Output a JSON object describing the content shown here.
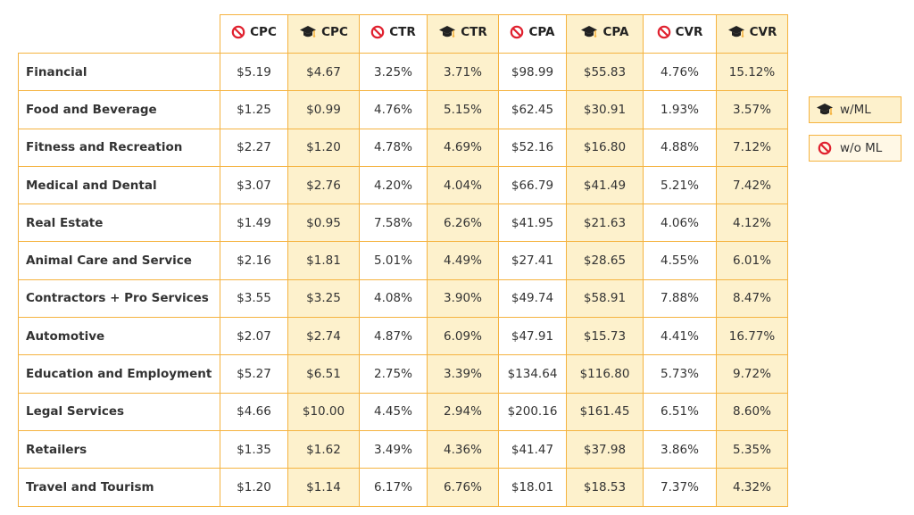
{
  "chart_data": {
    "type": "table",
    "columns": [
      {
        "metric": "CPC",
        "group": "w/o ML"
      },
      {
        "metric": "CPC",
        "group": "w/ML"
      },
      {
        "metric": "CTR",
        "group": "w/o ML"
      },
      {
        "metric": "CTR",
        "group": "w/ML"
      },
      {
        "metric": "CPA",
        "group": "w/o ML"
      },
      {
        "metric": "CPA",
        "group": "w/ML"
      },
      {
        "metric": "CVR",
        "group": "w/o ML"
      },
      {
        "metric": "CVR",
        "group": "w/ML"
      }
    ],
    "rows": [
      {
        "label": "Financial",
        "values": [
          "$5.19",
          "$4.67",
          "3.25%",
          "3.71%",
          "$98.99",
          "$55.83",
          "4.76%",
          "15.12%"
        ]
      },
      {
        "label": "Food and Beverage",
        "values": [
          "$1.25",
          "$0.99",
          "4.76%",
          "5.15%",
          "$62.45",
          "$30.91",
          "1.93%",
          "3.57%"
        ]
      },
      {
        "label": "Fitness and Recreation",
        "values": [
          "$2.27",
          "$1.20",
          "4.78%",
          "4.69%",
          "$52.16",
          "$16.80",
          "4.88%",
          "7.12%"
        ]
      },
      {
        "label": "Medical and Dental",
        "values": [
          "$3.07",
          "$2.76",
          "4.20%",
          "4.04%",
          "$66.79",
          "$41.49",
          "5.21%",
          "7.42%"
        ]
      },
      {
        "label": "Real Estate",
        "values": [
          "$1.49",
          "$0.95",
          "7.58%",
          "6.26%",
          "$41.95",
          "$21.63",
          "4.06%",
          "4.12%"
        ]
      },
      {
        "label": "Animal Care and Service",
        "values": [
          "$2.16",
          "$1.81",
          "5.01%",
          "4.49%",
          "$27.41",
          "$28.65",
          "4.55%",
          "6.01%"
        ]
      },
      {
        "label": "Contractors + Pro Services",
        "values": [
          "$3.55",
          "$3.25",
          "4.08%",
          "3.90%",
          "$49.74",
          "$58.91",
          "7.88%",
          "8.47%"
        ]
      },
      {
        "label": "Automotive",
        "values": [
          "$2.07",
          "$2.74",
          "4.87%",
          "6.09%",
          "$47.91",
          "$15.73",
          "4.41%",
          "16.77%"
        ]
      },
      {
        "label": "Education and Employment",
        "values": [
          "$5.27",
          "$6.51",
          "2.75%",
          "3.39%",
          "$134.64",
          "$116.80",
          "5.73%",
          "9.72%"
        ]
      },
      {
        "label": "Legal Services",
        "values": [
          "$4.66",
          "$10.00",
          "4.45%",
          "2.94%",
          "$200.16",
          "$161.45",
          "6.51%",
          "8.60%"
        ]
      },
      {
        "label": "Retailers",
        "values": [
          "$1.35",
          "$1.62",
          "3.49%",
          "4.36%",
          "$41.47",
          "$37.98",
          "3.86%",
          "5.35%"
        ]
      },
      {
        "label": "Travel and Tourism",
        "values": [
          "$1.20",
          "$1.14",
          "6.17%",
          "6.76%",
          "$18.01",
          "$18.53",
          "7.37%",
          "4.32%"
        ]
      }
    ],
    "legend": [
      {
        "label": "w/ML",
        "icon": "graduation-cap-icon"
      },
      {
        "label": "w/o ML",
        "icon": "prohibited-icon"
      }
    ],
    "legend_position": "right"
  },
  "colors": {
    "border": "#f5b340",
    "ml_fill": "#fdf1cc",
    "no_ml_fill": "#ffffff",
    "prohibited": "#e0202e",
    "cap": "#222222",
    "tassel": "#f5b340"
  }
}
